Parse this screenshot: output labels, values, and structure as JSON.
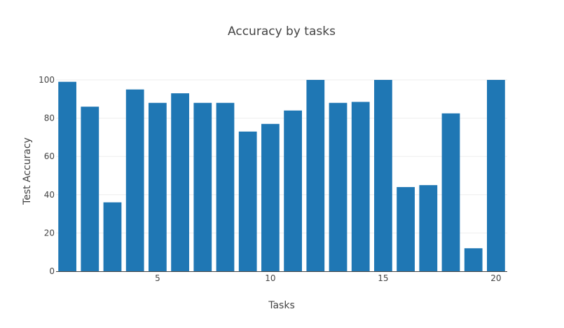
{
  "chart_data": {
    "type": "bar",
    "title": "Accuracy by tasks",
    "xlabel": "Tasks",
    "ylabel": "Test Accuracy",
    "x": [
      1,
      2,
      3,
      4,
      5,
      6,
      7,
      8,
      9,
      10,
      11,
      12,
      13,
      14,
      15,
      16,
      17,
      18,
      19,
      20
    ],
    "values": [
      99,
      86,
      36,
      95,
      88,
      93,
      88,
      88,
      73,
      77,
      84,
      100,
      88,
      88.5,
      100,
      44,
      45,
      82.5,
      12,
      100
    ],
    "ylim": [
      0,
      100
    ],
    "xlim": [
      0.5,
      20.5
    ],
    "yticks": [
      0,
      20,
      40,
      60,
      80,
      100
    ],
    "xticks": [
      5,
      10,
      15,
      20
    ],
    "bar_color": "#1f77b4",
    "grid": true,
    "legend": "none"
  }
}
